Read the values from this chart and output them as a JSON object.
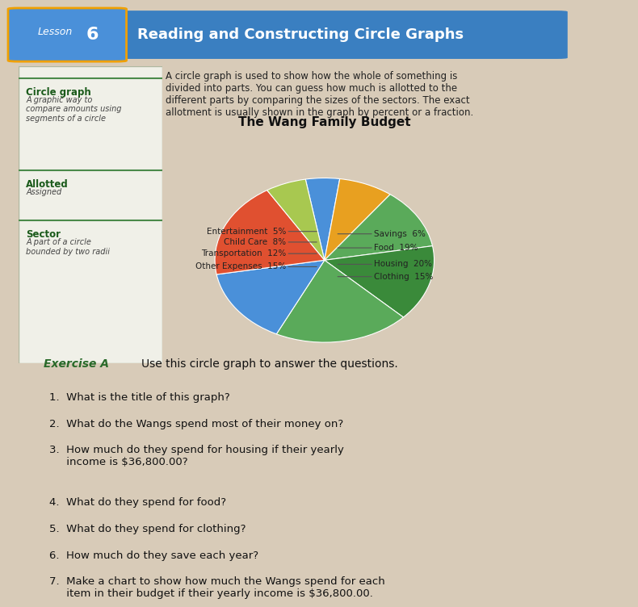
{
  "title": "The Wang Family Budget",
  "slices": [
    {
      "label": "Entertainment",
      "pct": 5,
      "color": "#4a90d9"
    },
    {
      "label": "Child Care",
      "pct": 8,
      "color": "#e8a020"
    },
    {
      "label": "Transportation",
      "pct": 12,
      "color": "#5aaa5a"
    },
    {
      "label": "Other Expenses",
      "pct": 15,
      "color": "#3a8a3a"
    },
    {
      "label": "Housing",
      "pct": 20,
      "color": "#5aaa5a"
    },
    {
      "label": "Clothing",
      "pct": 15,
      "color": "#4a90d9"
    },
    {
      "label": "Food",
      "pct": 19,
      "color": "#e05030"
    },
    {
      "label": "Savings",
      "pct": 6,
      "color": "#a8c850"
    }
  ],
  "left_labels": [
    [
      "Entertainment",
      "5%"
    ],
    [
      "Child Care",
      "8%"
    ],
    [
      "Transportation",
      "12%"
    ],
    [
      "Other Expenses",
      "15%"
    ]
  ],
  "right_labels": [
    [
      "Savings",
      "6%"
    ],
    [
      "Food",
      "19%"
    ],
    [
      "Housing",
      "20%"
    ],
    [
      "Clothing",
      "15%"
    ]
  ],
  "header_bg": "#3a7fc1",
  "header_text": "Reading and Constructing Circle Graphs",
  "lesson_num": "6",
  "lesson_label": "Lesson",
  "sidebar_bg": "#e8f0e0",
  "sidebar_title_color": "#1a6a1a",
  "page_bg": "#d8cbb8",
  "text_color": "#222222",
  "exercise_color": "#1a6a1a",
  "questions": [
    "1.  What is the title of this graph?",
    "2.  What do the Wangs spend most of their money on?",
    "3.  How much do they spend for housing if their yearly\n     income is $36,800.00?",
    "4.  What do they spend for food?",
    "5.  What do they spend for clothing?",
    "6.  How much do they save each year?",
    "7.  Make a chart to show how much the Wangs spend for each\n     item in their budget if their yearly income is $36,800.00."
  ],
  "sidebar_items": [
    {
      "head": "Circle graph",
      "sub": "A graphic way to\ncompare amounts using\nsegments of a circle"
    },
    {
      "head": "Allotted",
      "sub": "Assigned"
    },
    {
      "head": "Sector",
      "sub": "A part of a circle\nbounded by two radii"
    }
  ],
  "body_text": "A circle graph is used to show how the whole of something is\ndivided into parts. You can guess how much is allotted to the\ndifferent parts by comparing the sizes of the sectors. The exact\nallotment is usually shown in the graph by percent or a fraction."
}
